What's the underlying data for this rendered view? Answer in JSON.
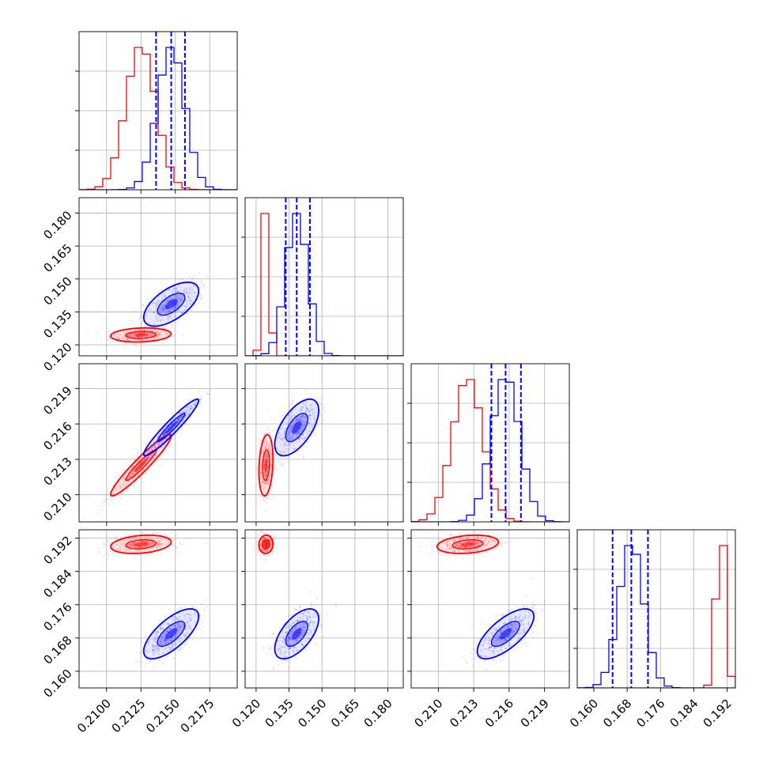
{
  "chart_data": {
    "type": "corner",
    "title": "",
    "parameters": [
      {
        "range": [
          0.208,
          0.2195
        ],
        "ticks": [
          0.21,
          0.2125,
          0.215,
          0.2175
        ],
        "tick_labels": [
          "0.2100",
          "0.2125",
          "0.2150",
          "0.2175"
        ]
      },
      {
        "range": [
          0.115,
          0.187
        ],
        "ticks": [
          0.12,
          0.135,
          0.15,
          0.165,
          0.18
        ],
        "tick_labels": [
          "0.120",
          "0.135",
          "0.150",
          "0.165",
          "0.180"
        ]
      },
      {
        "range": [
          0.2077,
          0.2211
        ],
        "ticks": [
          0.21,
          0.213,
          0.216,
          0.219
        ],
        "tick_labels": [
          "0.210",
          "0.213",
          "0.216",
          "0.219"
        ]
      },
      {
        "range": [
          0.156,
          0.194
        ],
        "ticks": [
          0.16,
          0.168,
          0.176,
          0.184,
          0.192
        ],
        "tick_labels": [
          "0.160",
          "0.168",
          "0.176",
          "0.184",
          "0.192"
        ]
      }
    ],
    "series": [
      {
        "color": "#ff0000",
        "mean": [
          0.2125,
          0.1245,
          0.2125,
          0.1905
        ],
        "std": [
          0.0011,
          0.0016,
          0.0013,
          0.0011
        ],
        "corr": [
          [
            1,
            0.15,
            0.95,
            0.25
          ],
          [
            0.15,
            1,
            0.2,
            0.05
          ],
          [
            0.95,
            0.2,
            1,
            0.25
          ],
          [
            0.25,
            0.05,
            0.25,
            1
          ]
        ],
        "quantiles": null
      },
      {
        "color": "#0000ff",
        "mean": [
          0.2147,
          0.1385,
          0.2157,
          0.169
        ],
        "std": [
          0.001,
          0.005,
          0.0012,
          0.003
        ],
        "corr": [
          [
            1,
            0.6,
            0.95,
            0.7
          ],
          [
            0.6,
            1,
            0.6,
            0.6
          ],
          [
            0.95,
            0.6,
            1,
            0.7
          ],
          [
            0.7,
            0.6,
            0.7,
            1
          ]
        ],
        "quantiles": [
          [
            0.2136,
            0.2147,
            0.2157
          ],
          [
            0.1335,
            0.1385,
            0.1445
          ],
          [
            0.2145,
            0.2157,
            0.217
          ],
          [
            0.1645,
            0.169,
            0.173
          ]
        ]
      }
    ],
    "colors": {
      "red": "#ff0000",
      "blue": "#0000ff",
      "grid": "#b0b0b0"
    },
    "grid": true,
    "contour_levels": [
      0.39,
      0.86
    ]
  }
}
